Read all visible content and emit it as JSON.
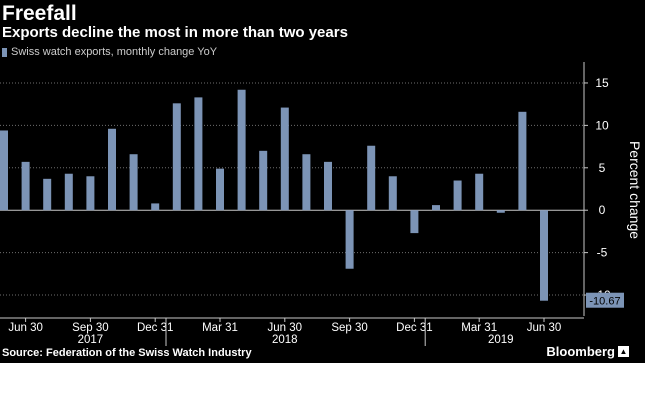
{
  "title": "Freefall",
  "subtitle": "Exports decline the most in more than two years",
  "legend_label": "Swiss watch exports, monthly change YoY",
  "source": "Source: Federation of the Swiss Watch Industry",
  "brand": "Bloomberg",
  "colors": {
    "background": "#000000",
    "bar": "#7c94b6",
    "grid": "#6e6e6e",
    "zero_line": "#c8c8c8",
    "text": "#ffffff",
    "last_label_bg": "#7c94b6"
  },
  "chart_data": {
    "type": "bar",
    "series": [
      {
        "name": "Swiss watch exports, monthly change YoY",
        "values": [
          9.4,
          5.7,
          3.7,
          4.3,
          4.0,
          9.6,
          6.6,
          0.8,
          12.6,
          13.3,
          4.9,
          14.2,
          7.0,
          12.1,
          6.6,
          5.7,
          -6.9,
          7.6,
          4.0,
          -2.7,
          0.6,
          3.5,
          4.3,
          -0.3,
          11.6,
          -10.67
        ]
      }
    ],
    "x": [
      "2017-05",
      "2017-06",
      "2017-07",
      "2017-08",
      "2017-09",
      "2017-10",
      "2017-11",
      "2017-12",
      "2018-01",
      "2018-02",
      "2018-03",
      "2018-04",
      "2018-05",
      "2018-06",
      "2018-07",
      "2018-08",
      "2018-09",
      "2018-10",
      "2018-11",
      "2018-12",
      "2019-01",
      "2019-02",
      "2019-03",
      "2019-04",
      "2019-05",
      "2019-06"
    ],
    "x_tick_labels": [
      "Jun 30",
      "Sep 30",
      "Dec 31",
      "Mar 31",
      "Jun 30",
      "Sep 30",
      "Dec 31",
      "Mar 31",
      "Jun 30"
    ],
    "x_tick_months": [
      "2017-06",
      "2017-09",
      "2017-12",
      "2018-03",
      "2018-06",
      "2018-09",
      "2018-12",
      "2019-03",
      "2019-06"
    ],
    "year_labels": [
      "2017",
      "2018",
      "2019"
    ],
    "year_label_months": [
      "2017-09",
      "2018-06",
      "2019-04"
    ],
    "y_ticks": [
      15,
      10,
      5,
      0,
      -5,
      -10
    ],
    "y_tick_labels": [
      "15",
      "10",
      "5",
      "0",
      "-5",
      "-10"
    ],
    "ylabel": "Percent change",
    "ylim": [
      -12,
      17
    ],
    "last_value_label": "-10.67",
    "grid": true,
    "grid_style": "dotted",
    "y_axis_side": "right",
    "legend_position": "top-left"
  }
}
